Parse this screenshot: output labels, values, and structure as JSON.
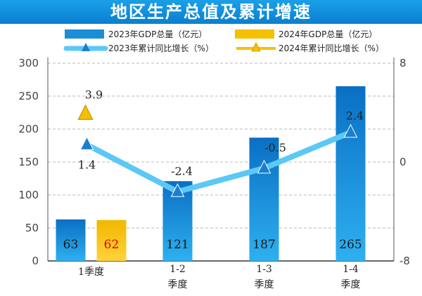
{
  "title": "地区生产总值及累计增速",
  "legend": {
    "gdp_2023": "2023年GDP总量（亿元）",
    "gdp_2024": "2024年GDP总量（亿元）",
    "growth_2023": "2023年累计同比增长（%）",
    "growth_2024": "2024年累计同比增长（%）"
  },
  "colors": {
    "title_bg": "#0a8ad8",
    "bar_2023": "#1a8fd8",
    "bar_2024": "#f5c000",
    "line_2023": "#5bc8f5",
    "marker_2023": "#1a7fd0",
    "marker_2024": "#f5c000",
    "highlight_label": "#e00000"
  },
  "chart_data": {
    "type": "bar",
    "categories": [
      "1季度",
      "1-2季度",
      "1-3季度",
      "1-4季度"
    ],
    "series": [
      {
        "name": "2023年GDP总量（亿元）",
        "axis": "left",
        "values": [
          63,
          121,
          187,
          265
        ]
      },
      {
        "name": "2024年GDP总量（亿元）",
        "axis": "left",
        "values": [
          62,
          null,
          null,
          null
        ]
      },
      {
        "name": "2023年累计同比增长（%）",
        "type": "line",
        "axis": "right",
        "values": [
          1.4,
          -2.4,
          -0.5,
          2.4
        ]
      },
      {
        "name": "2024年累计同比增长（%）",
        "type": "line",
        "axis": "right",
        "values": [
          3.9,
          null,
          null,
          null
        ]
      }
    ],
    "bar_labels_2023": [
      "63",
      "121",
      "187",
      "265"
    ],
    "bar_labels_2024": [
      "62"
    ],
    "line_labels_2023": [
      "1.4",
      "-2.4",
      "-0.5",
      "2.4"
    ],
    "line_labels_2024": [
      "3.9"
    ],
    "category_lines": [
      [
        "1季度"
      ],
      [
        "1-2",
        "季度"
      ],
      [
        "1-3",
        "季度"
      ],
      [
        "1-4",
        "季度"
      ]
    ],
    "left_ticks": [
      "0",
      "50",
      "100",
      "150",
      "200",
      "250",
      "300"
    ],
    "right_ticks": [
      "8",
      "0",
      "-8"
    ],
    "ylim_left": [
      0,
      300
    ],
    "ylim_right": [
      -8,
      8
    ],
    "grid": true,
    "legend_position": "top"
  }
}
